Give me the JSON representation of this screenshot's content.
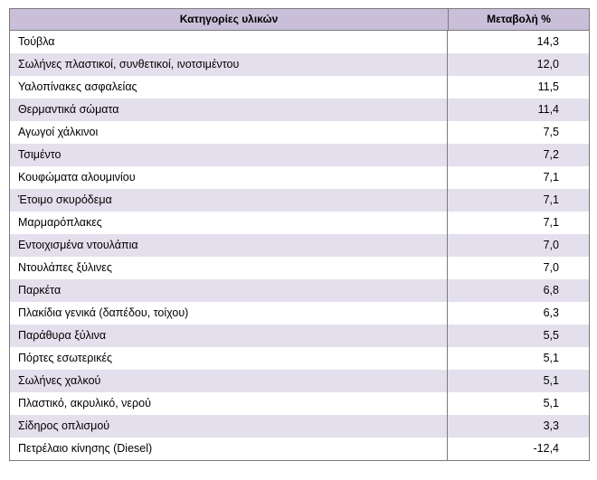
{
  "table": {
    "headers": {
      "category": "Κατηγορίες υλικών",
      "change": "Μεταβολή %"
    },
    "rows": [
      {
        "category": "Τούβλα",
        "change": "14,3"
      },
      {
        "category": "Σωλήνες πλαστικοί, συνθετικοί, ινοτσιμέντου",
        "change": "12,0"
      },
      {
        "category": "Υαλοπίνακες ασφαλείας",
        "change": "11,5"
      },
      {
        "category": "Θερμαντικά σώματα",
        "change": "11,4"
      },
      {
        "category": "Αγωγοί χάλκινοι",
        "change": "7,5"
      },
      {
        "category": "Τσιμέντο",
        "change": "7,2"
      },
      {
        "category": "Κουφώματα αλουμινίου",
        "change": "7,1"
      },
      {
        "category": "Έτοιμο σκυρόδεμα",
        "change": "7,1"
      },
      {
        "category": "Μαρμαρόπλακες",
        "change": "7,1"
      },
      {
        "category": "Εντοιχισμένα ντουλάπια",
        "change": "7,0"
      },
      {
        "category": "Ντουλάπες ξύλινες",
        "change": "7,0"
      },
      {
        "category": "Παρκέτα",
        "change": "6,8"
      },
      {
        "category": "Πλακίδια γενικά (δαπέδου, τοίχου)",
        "change": "6,3"
      },
      {
        "category": "Παράθυρα ξύλινα",
        "change": "5,5"
      },
      {
        "category": "Πόρτες εσωτερικές",
        "change": "5,1"
      },
      {
        "category": "Σωλήνες χαλκού",
        "change": "5,1"
      },
      {
        "category": "Πλαστικό, ακρυλικό, νερού",
        "change": "5,1"
      },
      {
        "category": "Σίδηρος οπλισμού",
        "change": "3,3"
      },
      {
        "category": "Πετρέλαιο κίνησης (Diesel)",
        "change": "-12,4"
      }
    ]
  }
}
